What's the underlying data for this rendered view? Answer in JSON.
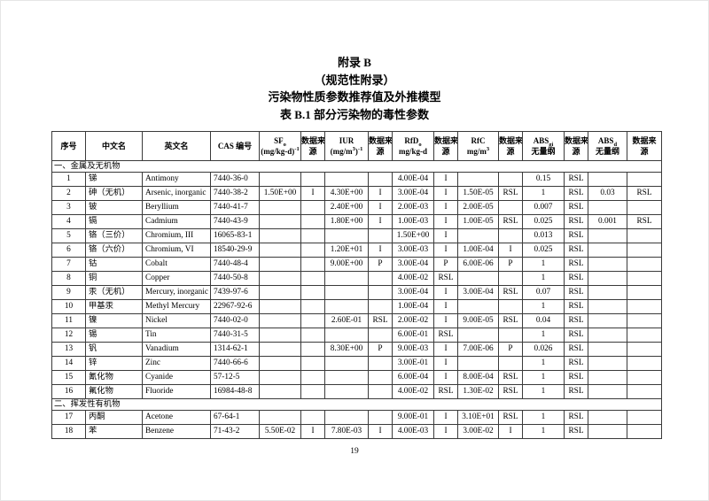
{
  "page": {
    "titles": {
      "appendix": "附录 B",
      "normative": "（规范性附录）",
      "doc_title": "污染物性质参数推荐值及外推模型",
      "table_caption": "表 B.1 部分污染物的毒性参数"
    },
    "page_number": "19"
  },
  "table": {
    "columns": [
      {
        "name": "index",
        "lines": [
          [
            {
              "t": "序号"
            }
          ]
        ]
      },
      {
        "name": "chinese-name",
        "lines": [
          [
            {
              "t": "中文名"
            }
          ]
        ]
      },
      {
        "name": "english-name",
        "lines": [
          [
            {
              "t": "英文名"
            }
          ]
        ]
      },
      {
        "name": "cas-number",
        "lines": [
          [
            {
              "t": "CAS 编号"
            }
          ]
        ]
      },
      {
        "name": "sfo",
        "lines": [
          [
            {
              "t": "SF"
            },
            {
              "t": "o",
              "s": "sub"
            }
          ],
          [
            {
              "t": "(mg/kg-d)"
            },
            {
              "t": "-1",
              "s": "sup"
            }
          ]
        ]
      },
      {
        "name": "source",
        "lines": [
          [
            {
              "t": "数据来"
            }
          ],
          [
            {
              "t": "源"
            }
          ]
        ]
      },
      {
        "name": "iur",
        "lines": [
          [
            {
              "t": "IUR"
            }
          ],
          [
            {
              "t": "(mg/m"
            },
            {
              "t": "3",
              "s": "sup"
            },
            {
              "t": ")"
            },
            {
              "t": "-1",
              "s": "sup"
            }
          ]
        ]
      },
      {
        "name": "source",
        "lines": [
          [
            {
              "t": "数据来"
            }
          ],
          [
            {
              "t": "源"
            }
          ]
        ]
      },
      {
        "name": "rfdo",
        "lines": [
          [
            {
              "t": "RfD"
            },
            {
              "t": "o",
              "s": "sub"
            }
          ],
          [
            {
              "t": "mg/kg-d"
            }
          ]
        ]
      },
      {
        "name": "source",
        "lines": [
          [
            {
              "t": "数据来"
            }
          ],
          [
            {
              "t": "源"
            }
          ]
        ]
      },
      {
        "name": "rfc",
        "lines": [
          [
            {
              "t": "RfC"
            }
          ],
          [
            {
              "t": "mg/m"
            },
            {
              "t": "3",
              "s": "sup"
            }
          ]
        ]
      },
      {
        "name": "source",
        "lines": [
          [
            {
              "t": "数据来"
            }
          ],
          [
            {
              "t": "源"
            }
          ]
        ]
      },
      {
        "name": "abs-gi",
        "lines": [
          [
            {
              "t": "ABS"
            },
            {
              "t": "gi",
              "s": "sub"
            }
          ],
          [
            {
              "t": "无量纲"
            }
          ]
        ]
      },
      {
        "name": "source",
        "lines": [
          [
            {
              "t": "数据来"
            }
          ],
          [
            {
              "t": "源"
            }
          ]
        ]
      },
      {
        "name": "abs-d",
        "lines": [
          [
            {
              "t": "ABS"
            },
            {
              "t": "d",
              "s": "sub"
            }
          ],
          [
            {
              "t": "无量纲"
            }
          ]
        ]
      },
      {
        "name": "source",
        "lines": [
          [
            {
              "t": "数据来"
            }
          ],
          [
            {
              "t": "源"
            }
          ]
        ]
      }
    ],
    "rows": [
      {
        "type": "section",
        "label": "一、金属及无机物"
      },
      {
        "type": "data",
        "cells": [
          "1",
          "锑",
          "Antimony",
          "7440-36-0",
          "",
          "",
          "",
          "",
          "4.00E-04",
          "I",
          "",
          "",
          "0.15",
          "RSL",
          "",
          ""
        ]
      },
      {
        "type": "data",
        "cells": [
          "2",
          "砷（无机）",
          "Arsenic, inorganic",
          "7440-38-2",
          "1.50E+00",
          "I",
          "4.30E+00",
          "I",
          "3.00E-04",
          "I",
          "1.50E-05",
          "RSL",
          "1",
          "RSL",
          "0.03",
          "RSL"
        ]
      },
      {
        "type": "data",
        "cells": [
          "3",
          "铍",
          "Beryllium",
          "7440-41-7",
          "",
          "",
          "2.40E+00",
          "I",
          "2.00E-03",
          "I",
          "2.00E-05",
          "",
          "0.007",
          "RSL",
          "",
          ""
        ]
      },
      {
        "type": "data",
        "cells": [
          "4",
          "镉",
          "Cadmium",
          "7440-43-9",
          "",
          "",
          "1.80E+00",
          "I",
          "1.00E-03",
          "I",
          "1.00E-05",
          "RSL",
          "0.025",
          "RSL",
          "0.001",
          "RSL"
        ]
      },
      {
        "type": "data",
        "cells": [
          "5",
          "铬（三价）",
          "Chromium, III",
          "16065-83-1",
          "",
          "",
          "",
          "",
          "1.50E+00",
          "I",
          "",
          "",
          "0.013",
          "RSL",
          "",
          ""
        ]
      },
      {
        "type": "data",
        "cells": [
          "6",
          "铬（六价）",
          "Chromium, VI",
          "18540-29-9",
          "",
          "",
          "1.20E+01",
          "I",
          "3.00E-03",
          "I",
          "1.00E-04",
          "I",
          "0.025",
          "RSL",
          "",
          ""
        ]
      },
      {
        "type": "data",
        "cells": [
          "7",
          "钴",
          "Cobalt",
          "7440-48-4",
          "",
          "",
          "9.00E+00",
          "P",
          "3.00E-04",
          "P",
          "6.00E-06",
          "P",
          "1",
          "RSL",
          "",
          ""
        ]
      },
      {
        "type": "data",
        "cells": [
          "8",
          "铜",
          "Copper",
          "7440-50-8",
          "",
          "",
          "",
          "",
          "4.00E-02",
          "RSL",
          "",
          "",
          "1",
          "RSL",
          "",
          ""
        ]
      },
      {
        "type": "data",
        "cells": [
          "9",
          "汞（无机）",
          "Mercury, inorganic",
          "7439-97-6",
          "",
          "",
          "",
          "",
          "3.00E-04",
          "I",
          "3.00E-04",
          "RSL",
          "0.07",
          "RSL",
          "",
          ""
        ]
      },
      {
        "type": "data",
        "cells": [
          "10",
          "甲基汞",
          "Methyl Mercury",
          "22967-92-6",
          "",
          "",
          "",
          "",
          "1.00E-04",
          "I",
          "",
          "",
          "1",
          "RSL",
          "",
          ""
        ]
      },
      {
        "type": "data",
        "cells": [
          "11",
          "镍",
          "Nickel",
          "7440-02-0",
          "",
          "",
          "2.60E-01",
          "RSL",
          "2.00E-02",
          "I",
          "9.00E-05",
          "RSL",
          "0.04",
          "RSL",
          "",
          ""
        ]
      },
      {
        "type": "data",
        "cells": [
          "12",
          "锡",
          "Tin",
          "7440-31-5",
          "",
          "",
          "",
          "",
          "6.00E-01",
          "RSL",
          "",
          "",
          "1",
          "RSL",
          "",
          ""
        ]
      },
      {
        "type": "data",
        "cells": [
          "13",
          "钒",
          "Vanadium",
          "1314-62-1",
          "",
          "",
          "8.30E+00",
          "P",
          "9.00E-03",
          "I",
          "7.00E-06",
          "P",
          "0.026",
          "RSL",
          "",
          ""
        ]
      },
      {
        "type": "data",
        "cells": [
          "14",
          "锌",
          "Zinc",
          "7440-66-6",
          "",
          "",
          "",
          "",
          "3.00E-01",
          "I",
          "",
          "",
          "1",
          "RSL",
          "",
          ""
        ]
      },
      {
        "type": "data",
        "cells": [
          "15",
          "氰化物",
          "Cyanide",
          "57-12-5",
          "",
          "",
          "",
          "",
          "6.00E-04",
          "I",
          "8.00E-04",
          "RSL",
          "1",
          "RSL",
          "",
          ""
        ]
      },
      {
        "type": "data",
        "cells": [
          "16",
          "氟化物",
          "Fluoride",
          "16984-48-8",
          "",
          "",
          "",
          "",
          "4.00E-02",
          "RSL",
          "1.30E-02",
          "RSL",
          "1",
          "RSL",
          "",
          ""
        ]
      },
      {
        "type": "section",
        "label": "二、挥发性有机物"
      },
      {
        "type": "data",
        "cells": [
          "17",
          "丙酮",
          "Acetone",
          "67-64-1",
          "",
          "",
          "",
          "",
          "9.00E-01",
          "I",
          "3.10E+01",
          "RSL",
          "1",
          "RSL",
          "",
          ""
        ]
      },
      {
        "type": "data",
        "cells": [
          "18",
          "苯",
          "Benzene",
          "71-43-2",
          "5.50E-02",
          "I",
          "7.80E-03",
          "I",
          "4.00E-03",
          "I",
          "3.00E-02",
          "I",
          "1",
          "RSL",
          "",
          ""
        ]
      }
    ]
  }
}
